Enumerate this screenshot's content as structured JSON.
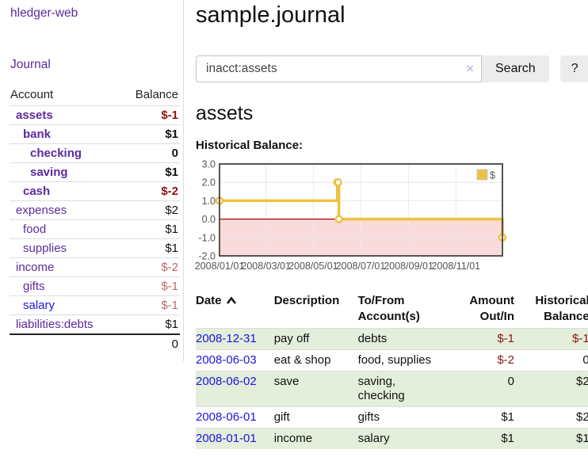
{
  "app": {
    "title": "hledger-web"
  },
  "colors": {
    "link_purple": "#5b2a9e",
    "link_blue": "#1a16e0",
    "negative_strong": "#8e1313",
    "negative_muted": "#c06868",
    "row_stripe_green": "#e3eedb",
    "chart_line_gold": "#edc240"
  },
  "sidebar": {
    "journal_link": "Journal",
    "header": {
      "account": "Account",
      "balance": "Balance"
    },
    "accounts": [
      {
        "name": "assets",
        "balance": "$-1",
        "depth": 1,
        "bold": true
      },
      {
        "name": "bank",
        "balance": "$1",
        "depth": 2,
        "bold": true
      },
      {
        "name": "checking",
        "balance": "0",
        "depth": 3,
        "bold": true
      },
      {
        "name": "saving",
        "balance": "$1",
        "depth": 3,
        "bold": true
      },
      {
        "name": "cash",
        "balance": "$-2",
        "depth": 2,
        "bold": true
      },
      {
        "name": "expenses",
        "balance": "$2",
        "depth": 1,
        "bold": false
      },
      {
        "name": "food",
        "balance": "$1",
        "depth": 2,
        "bold": false
      },
      {
        "name": "supplies",
        "balance": "$1",
        "depth": 2,
        "bold": false
      },
      {
        "name": "income",
        "balance": "$-2",
        "depth": 1,
        "bold": false
      },
      {
        "name": "gifts",
        "balance": "$-1",
        "depth": 2,
        "bold": false
      },
      {
        "name": "salary",
        "balance": "$-1",
        "depth": 2,
        "bold": false,
        "unvisited": true
      },
      {
        "name": "liabilities:debts",
        "balance": "$1",
        "depth": 1,
        "bold": false
      }
    ],
    "total": "0"
  },
  "main": {
    "title": "sample.journal",
    "search": {
      "query": "inacct:assets",
      "clear_icon": "×",
      "search_button": "Search",
      "help_button": "?"
    },
    "account_heading": "assets",
    "chart_title": "Historical Balance:"
  },
  "chart_data": {
    "type": "line",
    "step": true,
    "title": "Historical Balance",
    "series": [
      {
        "name": "$",
        "color": "#edc240",
        "points": [
          [
            "2008-01-01",
            1
          ],
          [
            "2008-06-01",
            2
          ],
          [
            "2008-06-02",
            2
          ],
          [
            "2008-06-03",
            0
          ],
          [
            "2008-12-31",
            -1
          ]
        ]
      }
    ],
    "xlim": [
      "2008-01-01",
      "2008-12-31"
    ],
    "ylim": [
      -2,
      3
    ],
    "yticks": [
      {
        "v": -2,
        "label": "-2.0"
      },
      {
        "v": -1,
        "label": "-1.0"
      },
      {
        "v": 0,
        "label": "0.0"
      },
      {
        "v": 1,
        "label": "1.0"
      },
      {
        "v": 2,
        "label": "2.0"
      },
      {
        "v": 3,
        "label": "3.0"
      }
    ],
    "xticks": [
      {
        "date": "2008-01-01",
        "label": "2008/01/01"
      },
      {
        "date": "2008-03-01",
        "label": "2008/03/01"
      },
      {
        "date": "2008-05-01",
        "label": "2008/05/01"
      },
      {
        "date": "2008-07-01",
        "label": "2008/07/01"
      },
      {
        "date": "2008-09-01",
        "label": "2008/09/01"
      },
      {
        "date": "2008-11-01",
        "label": "2008/11/01"
      }
    ],
    "legend": {
      "label": "$",
      "position": "top-right"
    },
    "grid": true,
    "negative_fill": "#fadbdb",
    "zero_line": "#aa0000"
  },
  "register": {
    "columns": [
      "Date",
      "Description",
      "To/From Account(s)",
      "Amount Out/In",
      "Historical Balance"
    ],
    "sort": {
      "column": "Date",
      "direction": "ascending"
    },
    "rows": [
      {
        "date": "2008-12-31",
        "description": "pay off",
        "to_from": "debts",
        "amount": "$-1",
        "balance": "$-1"
      },
      {
        "date": "2008-06-03",
        "description": "eat & shop",
        "to_from": "food, supplies",
        "amount": "$-2",
        "balance": "0"
      },
      {
        "date": "2008-06-02",
        "description": "save",
        "to_from": "saving, checking",
        "amount": "0",
        "balance": "$2"
      },
      {
        "date": "2008-06-01",
        "description": "gift",
        "to_from": "gifts",
        "amount": "$1",
        "balance": "$2"
      },
      {
        "date": "2008-01-01",
        "description": "income",
        "to_from": "salary",
        "amount": "$1",
        "balance": "$1"
      }
    ]
  }
}
